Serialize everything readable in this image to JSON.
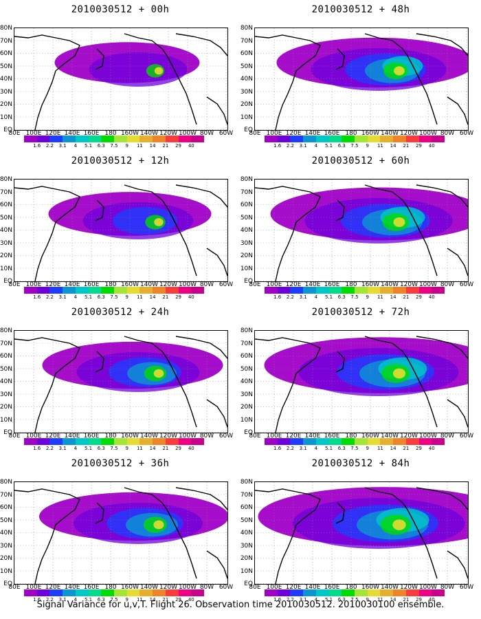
{
  "panels": [
    {
      "title": "2010030512 + 00h",
      "intensity": 0.35
    },
    {
      "title": "2010030512 + 48h",
      "intensity": 0.65
    },
    {
      "title": "2010030512 + 12h",
      "intensity": 0.45
    },
    {
      "title": "2010030512 + 60h",
      "intensity": 0.75
    },
    {
      "title": "2010030512 + 24h",
      "intensity": 0.55
    },
    {
      "title": "2010030512 + 72h",
      "intensity": 0.85
    },
    {
      "title": "2010030512 + 36h",
      "intensity": 0.6
    },
    {
      "title": "2010030512 + 84h",
      "intensity": 0.95
    }
  ],
  "lat_labels": [
    "80N",
    "70N",
    "60N",
    "50N",
    "40N",
    "30N",
    "20N",
    "10N",
    "EQ"
  ],
  "lon_labels": [
    "80E",
    "100E",
    "120E",
    "140E",
    "160E",
    "180",
    "160W",
    "140W",
    "120W",
    "100W",
    "80W",
    "60W"
  ],
  "colorbar": {
    "labels": [
      "1.6",
      "2.2",
      "3.1",
      "4",
      "5.1",
      "6.3",
      "7.5",
      "9",
      "11",
      "14",
      "21",
      "29",
      "40"
    ],
    "colors": [
      "#a000c8",
      "#6e00dc",
      "#1e3cff",
      "#0a96d2",
      "#00c8c8",
      "#00dc8c",
      "#00dc00",
      "#a0e632",
      "#e6dc32",
      "#e6af2d",
      "#f08228",
      "#fa3c3c",
      "#f00082",
      "#c8008c"
    ]
  },
  "caption": "Signal Variance for u,v,T. Flight 26. Observation time 2010030512. 2010030100 ensemble."
}
